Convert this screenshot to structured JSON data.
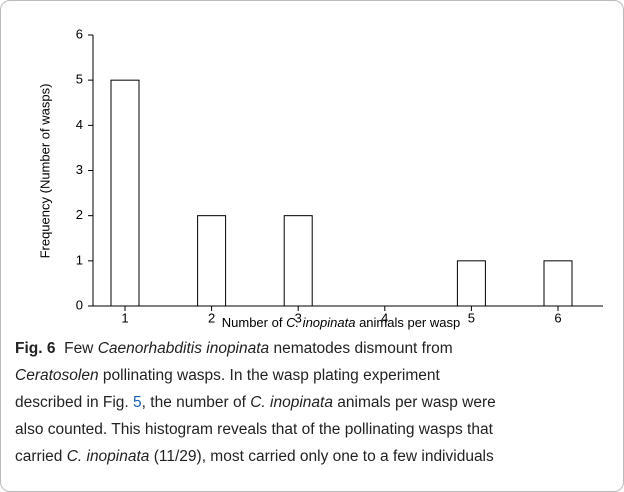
{
  "chart_data": {
    "type": "bar",
    "categories": [
      "1",
      "2",
      "3",
      "4",
      "5",
      "6"
    ],
    "values": [
      5,
      2,
      2,
      0,
      1,
      1
    ],
    "color": "#ffffff",
    "edge_color": "#000000",
    "ylim": [
      0,
      6
    ],
    "yticks": [
      0,
      1,
      2,
      3,
      4,
      5,
      6
    ],
    "ylabel": "Frequency (Number of wasps)",
    "xlabel": [
      {
        "text": "Number of "
      },
      {
        "text": "C. inopinata",
        "style": "italic"
      },
      {
        "text": " animals per wasp"
      }
    ]
  },
  "caption": {
    "lines": [
      [
        {
          "text": "Fig. 6",
          "style": "bold"
        },
        {
          "text": "  Few "
        },
        {
          "text": "Caenorhabditis inopinata",
          "style": "italic"
        },
        {
          "text": " nematodes dismount from"
        }
      ],
      [
        {
          "text": "Ceratosolen",
          "style": "italic"
        },
        {
          "text": " pollinating wasps. In the wasp plating experiment"
        }
      ],
      [
        {
          "text": "described in Fig. "
        },
        {
          "text": "5",
          "style": "link"
        },
        {
          "text": ", the number of "
        },
        {
          "text": "C. inopinata",
          "style": "italic"
        },
        {
          "text": " animals per wasp were"
        }
      ],
      [
        {
          "text": "also counted. This histogram reveals that of the pollinating wasps that"
        }
      ],
      [
        {
          "text": "carried "
        },
        {
          "text": "C. inopinata",
          "style": "italic"
        },
        {
          "text": " (11/29), most carried only one to a few individuals"
        }
      ]
    ]
  }
}
